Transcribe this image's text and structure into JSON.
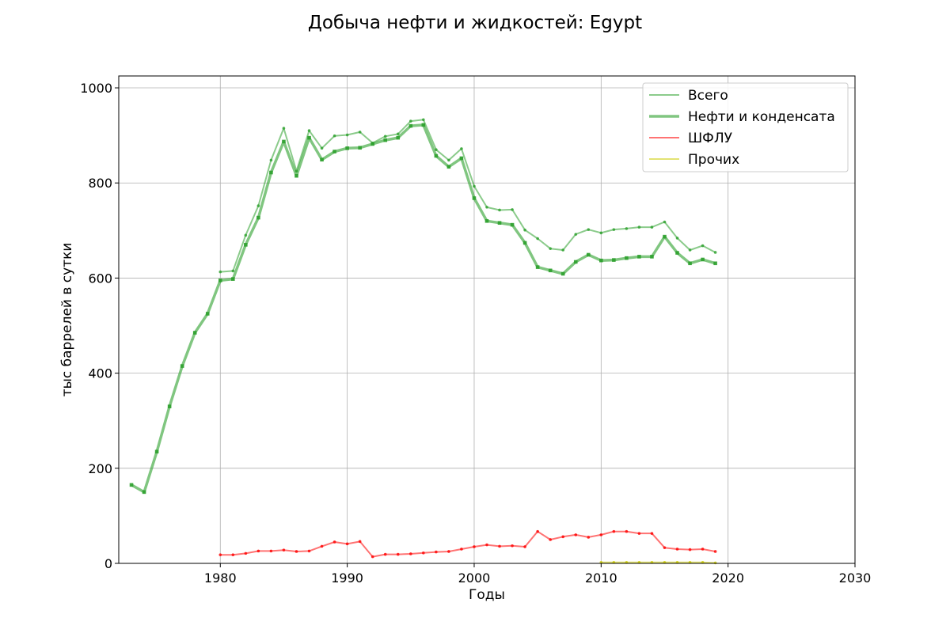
{
  "chart_data": {
    "type": "line",
    "title": "Добыча нефти и жидкостей: Egypt",
    "xlabel": "Годы",
    "ylabel": "тыс баррелей в сутки",
    "xlim": [
      1972,
      2030
    ],
    "ylim": [
      0,
      1025
    ],
    "xticks": [
      1980,
      1990,
      2000,
      2010,
      2020,
      2030
    ],
    "yticks": [
      0,
      200,
      400,
      600,
      800,
      1000
    ],
    "grid": true,
    "legend_position": "top-right",
    "series": [
      {
        "name": "Всего",
        "color": "#2ca02c",
        "style": "thin",
        "x": [
          1980,
          1981,
          1982,
          1983,
          1984,
          1985,
          1986,
          1987,
          1988,
          1989,
          1990,
          1991,
          1992,
          1993,
          1994,
          1995,
          1996,
          1997,
          1998,
          1999,
          2000,
          2001,
          2002,
          2003,
          2004,
          2005,
          2006,
          2007,
          2008,
          2009,
          2010,
          2011,
          2012,
          2013,
          2014,
          2015,
          2016,
          2017,
          2018,
          2019
        ],
        "values": [
          613,
          615,
          690,
          752,
          848,
          915,
          825,
          910,
          873,
          899,
          901,
          907,
          884,
          898,
          903,
          930,
          933,
          870,
          848,
          872,
          793,
          749,
          743,
          744,
          701,
          683,
          662,
          659,
          692,
          702,
          695,
          702,
          704,
          707,
          707,
          718,
          684,
          659,
          668,
          654
        ]
      },
      {
        "name": "Нефти и конденсата",
        "color": "#2ca02c",
        "style": "thick",
        "x": [
          1973,
          1974,
          1975,
          1976,
          1977,
          1978,
          1979,
          1980,
          1981,
          1982,
          1983,
          1984,
          1985,
          1986,
          1987,
          1988,
          1989,
          1990,
          1991,
          1992,
          1993,
          1994,
          1995,
          1996,
          1997,
          1998,
          1999,
          2000,
          2001,
          2002,
          2003,
          2004,
          2005,
          2006,
          2007,
          2008,
          2009,
          2010,
          2011,
          2012,
          2013,
          2014,
          2015,
          2016,
          2017,
          2018,
          2019
        ],
        "values": [
          165,
          150,
          235,
          330,
          415,
          485,
          525,
          595,
          598,
          670,
          727,
          822,
          887,
          815,
          895,
          849,
          866,
          873,
          874,
          882,
          890,
          895,
          920,
          922,
          857,
          834,
          852,
          768,
          720,
          716,
          712,
          674,
          623,
          616,
          609,
          634,
          649,
          637,
          638,
          642,
          645,
          645,
          687,
          653,
          631,
          639,
          631
        ]
      },
      {
        "name": "ШФЛУ",
        "color": "#ff0000",
        "style": "thin",
        "x": [
          1980,
          1981,
          1982,
          1983,
          1984,
          1985,
          1986,
          1987,
          1988,
          1989,
          1990,
          1991,
          1992,
          1993,
          1994,
          1995,
          1996,
          1997,
          1998,
          1999,
          2000,
          2001,
          2002,
          2003,
          2004,
          2005,
          2006,
          2007,
          2008,
          2009,
          2010,
          2011,
          2012,
          2013,
          2014,
          2015,
          2016,
          2017,
          2018,
          2019
        ],
        "values": [
          18,
          18,
          21,
          26,
          26,
          28,
          25,
          26,
          36,
          45,
          41,
          46,
          14,
          19,
          19,
          20,
          22,
          24,
          25,
          30,
          35,
          39,
          36,
          37,
          35,
          67,
          50,
          56,
          60,
          55,
          60,
          67,
          67,
          63,
          63,
          33,
          30,
          29,
          30,
          25
        ]
      },
      {
        "name": "Прочих",
        "color": "#cccc00",
        "style": "thin",
        "x": [
          2010,
          2011,
          2012,
          2013,
          2014,
          2015,
          2016,
          2017,
          2018,
          2019
        ],
        "values": [
          2,
          2,
          2,
          2,
          2,
          2,
          2,
          2,
          2,
          1
        ]
      }
    ]
  }
}
